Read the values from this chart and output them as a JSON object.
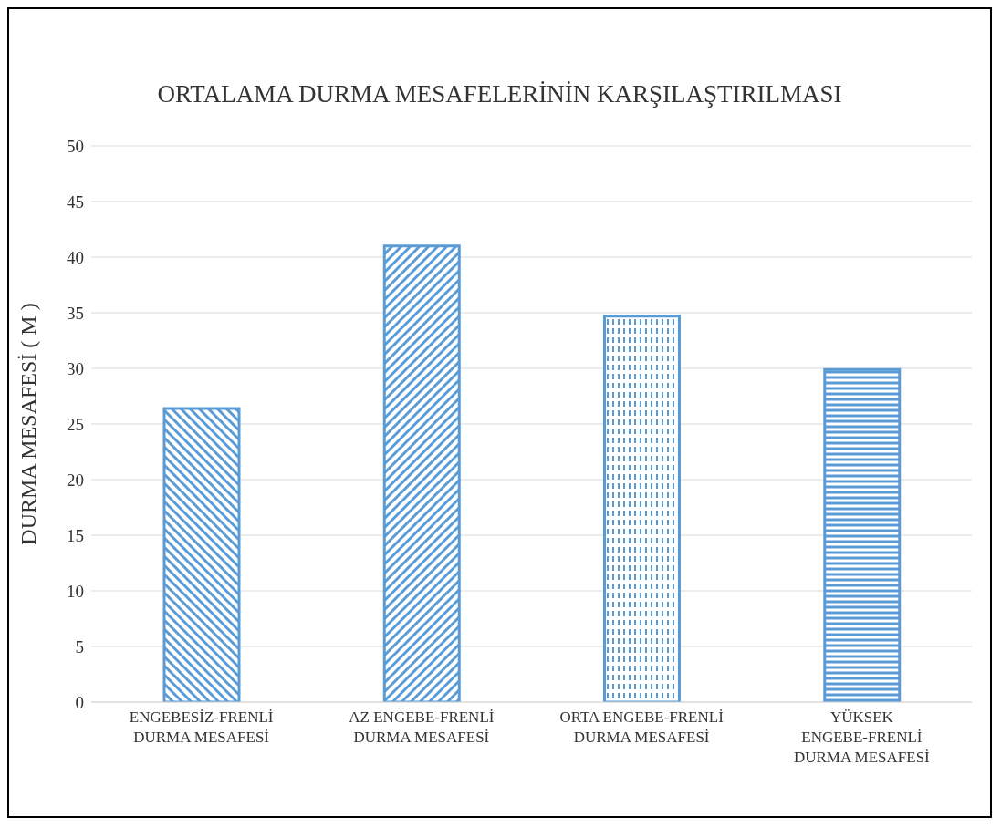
{
  "chart_data": {
    "type": "bar",
    "title": "ORTALAMA DURMA MESAFELERİNİN KARŞILAŞTIRILMASI",
    "ylabel": "DURMA MESAFESİ ( M )",
    "categories": [
      "ENGEBESİZ-FRENLİ DURMA MESAFESİ",
      "AZ ENGEBE-FRENLİ DURMA MESAFESİ",
      "ORTA ENGEBE-FRENLİ DURMA MESAFESİ",
      "YÜKSEK ENGEBE-FRENLİ DURMA MESAFESİ"
    ],
    "values": [
      26.4,
      41,
      34.7,
      29.9
    ],
    "color": "#5b9bd5",
    "ylim": [
      0,
      50
    ],
    "yticks": [
      0,
      5,
      10,
      15,
      20,
      25,
      30,
      35,
      40,
      45,
      50
    ],
    "grid": "y",
    "legend": false
  }
}
